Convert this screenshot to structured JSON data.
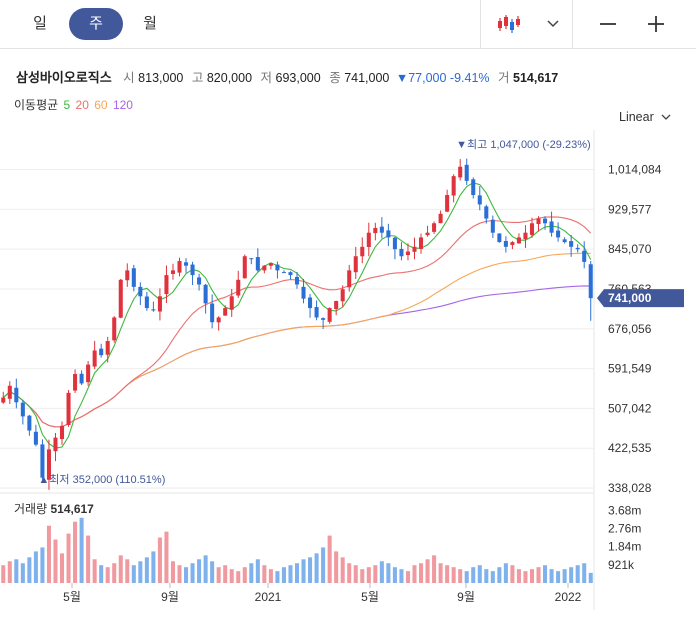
{
  "tabs": [
    {
      "label": "일"
    },
    {
      "label": "주"
    },
    {
      "label": "월"
    }
  ],
  "header": {
    "name": "삼성바이오로직스",
    "open_label": "시",
    "open": "813,000",
    "high_label": "고",
    "high": "820,000",
    "low_label": "저",
    "low": "693,000",
    "close_label": "종",
    "close": "741,000",
    "change": "▼77,000 -9.41%",
    "volume_label": "거",
    "volume": "514,617"
  },
  "ma_legend": {
    "label": "이동평균",
    "p5": "5",
    "p20": "20",
    "p60": "60",
    "p120": "120"
  },
  "scale_label": "Linear",
  "current_price_label": "741,000",
  "max_annotation": "최고 1,047,000 (-29.23%)",
  "min_annotation": "최저 352,000 (110.51%)",
  "volume_panel": {
    "label": "거래량",
    "value": "514,617"
  },
  "colors": {
    "up": "#e0323d",
    "down": "#2a6fd6",
    "ma5": "#3fb83f",
    "ma20": "#ec7070",
    "ma60": "#f7a758",
    "ma120": "#a666e8",
    "accent": "#41599b"
  },
  "icons": {
    "chart_type": "candlestick-icon",
    "dropdown": "chevron-down-icon",
    "zoom_out": "minus-icon",
    "zoom_in": "plus-icon"
  },
  "chart_data": {
    "type": "candlestick",
    "interval": "weekly",
    "y_ticks": [
      "1,014,084",
      "929,577",
      "845,070",
      "760,563",
      "676,056",
      "591,549",
      "507,042",
      "422,535",
      "338,028"
    ],
    "ylim": [
      338028,
      1098000
    ],
    "x_ticks": [
      "5월",
      "9월",
      "2021",
      "5월",
      "9월",
      "2022"
    ],
    "close_series": [
      530000,
      555000,
      520000,
      490000,
      460000,
      430000,
      360000,
      420000,
      445000,
      470000,
      540000,
      580000,
      560000,
      600000,
      630000,
      620000,
      650000,
      700000,
      780000,
      800000,
      765000,
      745000,
      720000,
      715000,
      745000,
      790000,
      800000,
      820000,
      810000,
      790000,
      770000,
      730000,
      690000,
      700000,
      720000,
      745000,
      780000,
      830000,
      825000,
      800000,
      810000,
      815000,
      800000,
      795000,
      790000,
      770000,
      740000,
      720000,
      700000,
      695000,
      720000,
      735000,
      760000,
      800000,
      830000,
      850000,
      880000,
      890000,
      880000,
      870000,
      845000,
      830000,
      840000,
      850000,
      870000,
      880000,
      900000,
      920000,
      960000,
      1000000,
      1020000,
      990000,
      960000,
      940000,
      910000,
      880000,
      860000,
      850000,
      860000,
      870000,
      880000,
      900000,
      910000,
      900000,
      880000,
      870000,
      860000,
      850000,
      845000,
      818000,
      741000
    ],
    "volume_bars_thousand": [
      900,
      1100,
      1200,
      1000,
      1300,
      1600,
      1800,
      2900,
      2200,
      1500,
      2500,
      3100,
      3300,
      2400,
      1200,
      900,
      800,
      1000,
      1400,
      1200,
      900,
      1100,
      1300,
      1600,
      2300,
      2600,
      1100,
      900,
      800,
      1000,
      1200,
      1400,
      1100,
      800,
      900,
      700,
      600,
      800,
      1000,
      1200,
      900,
      700,
      600,
      800,
      900,
      1000,
      1200,
      1300,
      1500,
      1800,
      2400,
      1600,
      1300,
      1000,
      900,
      700,
      800,
      900,
      1100,
      1000,
      800,
      700,
      600,
      900,
      1000,
      1200,
      1400,
      1000,
      900,
      800,
      700,
      600,
      800,
      900,
      700,
      600,
      800,
      1000,
      900,
      700,
      600,
      700,
      800,
      900,
      700,
      600,
      700,
      800,
      900,
      1000,
      514
    ],
    "volume_y_ticks": [
      "3.68m",
      "2.76m",
      "1.84m",
      "921k"
    ]
  }
}
